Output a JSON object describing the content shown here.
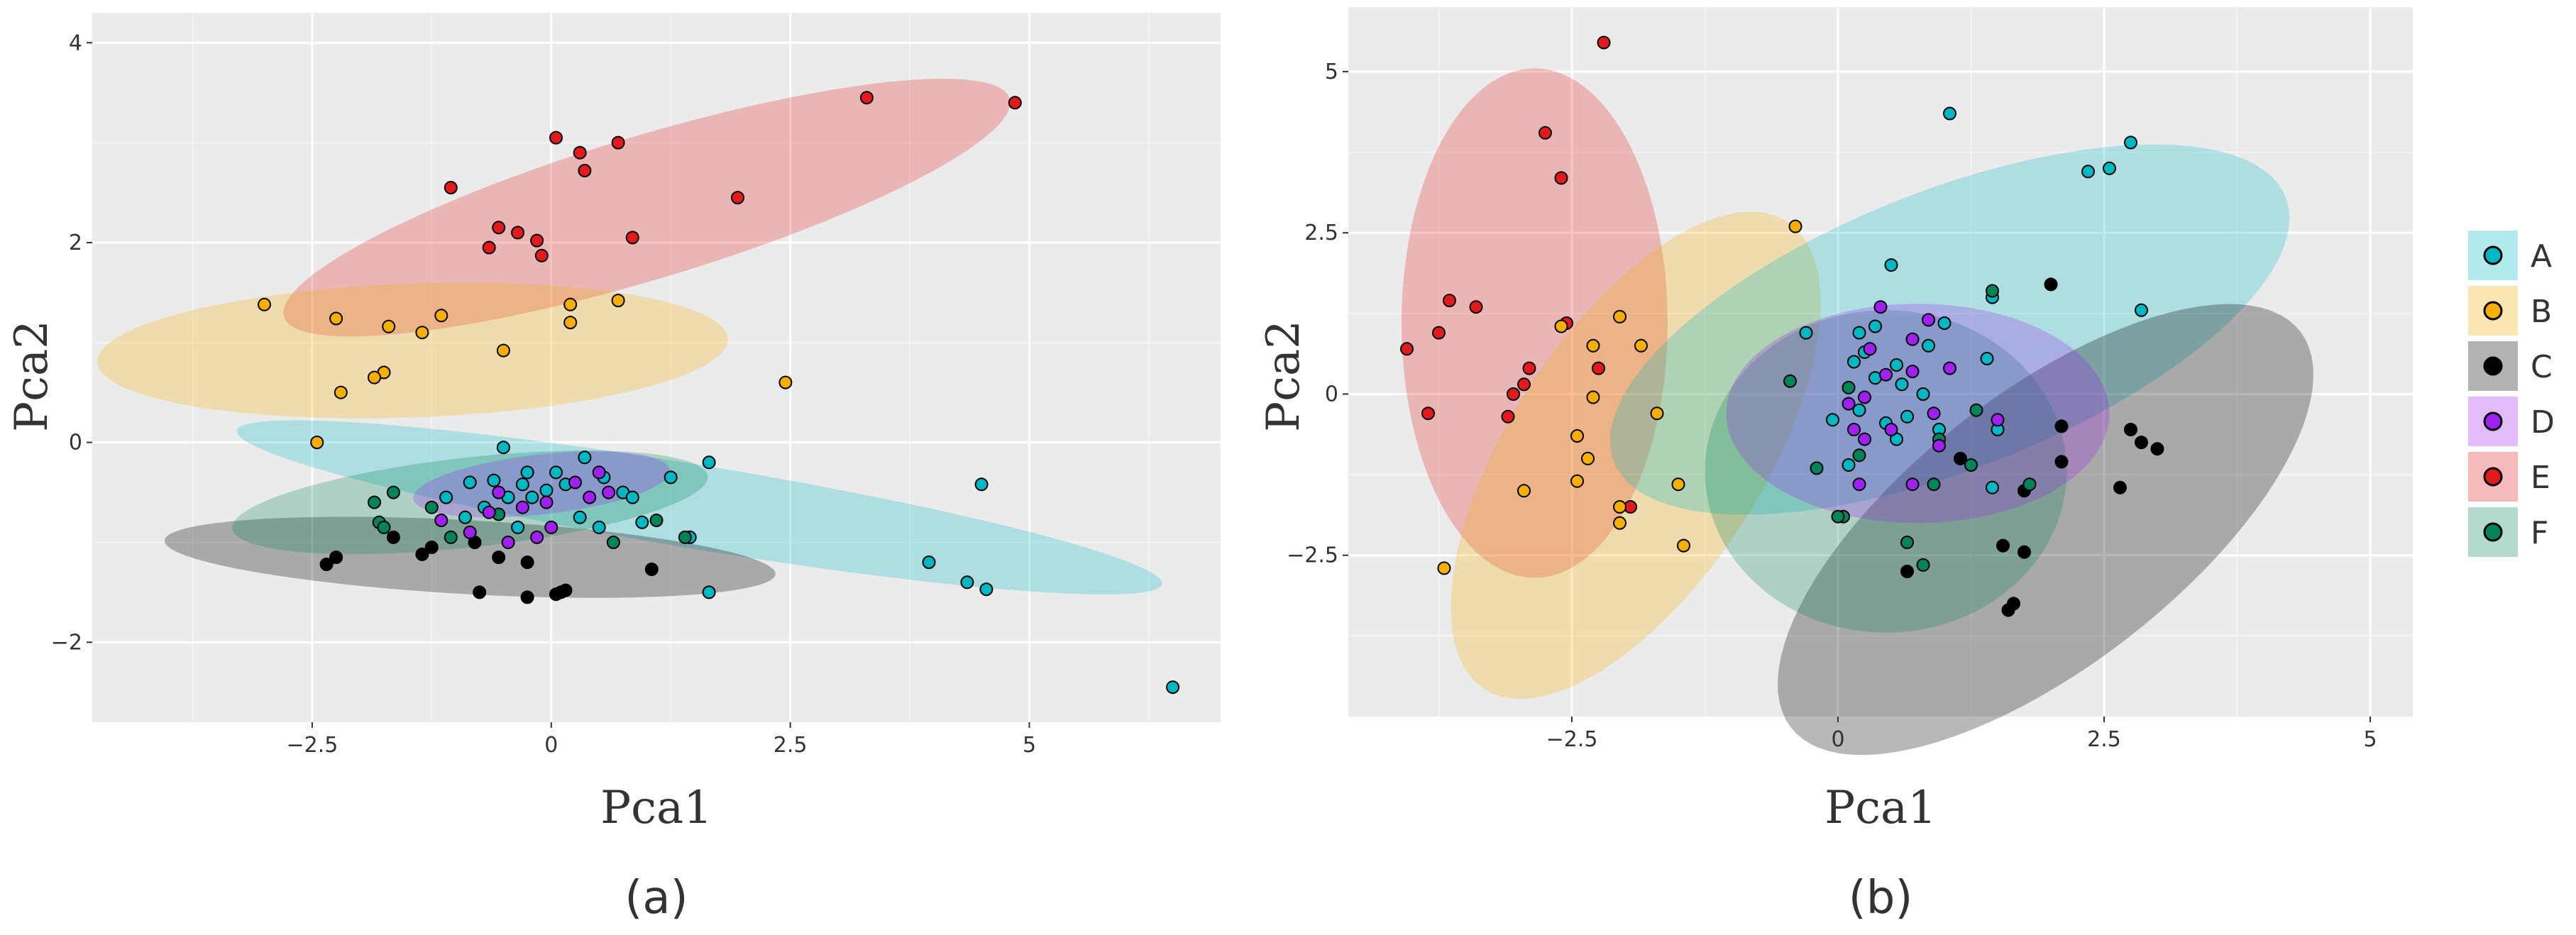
{
  "group_colors": {
    "A": "#00B8C4",
    "B": "#F6AE00",
    "C": "#000000",
    "D": "#A020F0",
    "E": "#E31A1C",
    "F": "#00855A"
  },
  "chart_data": [
    {
      "type": "scatter",
      "panel_label": "(a)",
      "xlabel": "Pca1",
      "ylabel": "Pca2",
      "xlim": [
        -4.8,
        7.0
      ],
      "ylim": [
        -2.8,
        4.3
      ],
      "xticks": [
        -2.5,
        0,
        2.5,
        5
      ],
      "xtick_labels": [
        "−2.5",
        "0",
        "2.5",
        "5"
      ],
      "yticks": [
        -2,
        0,
        2,
        4
      ],
      "ytick_labels": [
        "−2",
        "0",
        "2",
        "4"
      ],
      "ellipses": [
        {
          "group": "E",
          "center": [
            1.0,
            2.35
          ],
          "semi_major": 3.95,
          "semi_minor": 0.72,
          "angle_deg": 16
        },
        {
          "group": "B",
          "center": [
            -1.45,
            0.92
          ],
          "semi_major": 3.3,
          "semi_minor": 0.67,
          "angle_deg": 2
        },
        {
          "group": "A",
          "center": [
            1.55,
            -0.65
          ],
          "semi_major": 4.9,
          "semi_minor": 0.42,
          "angle_deg": -9
        },
        {
          "group": "C",
          "center": [
            -0.85,
            -1.15
          ],
          "semi_major": 3.2,
          "semi_minor": 0.37,
          "angle_deg": -3
        },
        {
          "group": "F",
          "center": [
            -0.85,
            -0.6
          ],
          "semi_major": 2.5,
          "semi_minor": 0.45,
          "angle_deg": 6
        },
        {
          "group": "D",
          "center": [
            -0.1,
            -0.42
          ],
          "semi_major": 1.35,
          "semi_minor": 0.3,
          "angle_deg": 6
        }
      ],
      "points": {
        "E": [
          [
            3.3,
            3.45
          ],
          [
            4.85,
            3.4
          ],
          [
            0.05,
            3.05
          ],
          [
            0.7,
            3.0
          ],
          [
            0.3,
            2.9
          ],
          [
            0.35,
            2.72
          ],
          [
            -1.05,
            2.55
          ],
          [
            1.95,
            2.45
          ],
          [
            -0.55,
            2.15
          ],
          [
            -0.35,
            2.1
          ],
          [
            -0.15,
            2.02
          ],
          [
            0.85,
            2.05
          ],
          [
            -0.65,
            1.95
          ],
          [
            -0.1,
            1.87
          ]
        ],
        "B": [
          [
            -3.0,
            1.38
          ],
          [
            0.7,
            1.42
          ],
          [
            0.2,
            1.38
          ],
          [
            -1.15,
            1.27
          ],
          [
            -2.25,
            1.24
          ],
          [
            -1.7,
            1.16
          ],
          [
            -1.35,
            1.1
          ],
          [
            0.2,
            1.2
          ],
          [
            -0.5,
            0.92
          ],
          [
            -1.75,
            0.7
          ],
          [
            -2.2,
            0.5
          ],
          [
            2.45,
            0.6
          ],
          [
            -2.45,
            0.0
          ],
          [
            -1.85,
            0.65
          ]
        ],
        "A": [
          [
            -0.5,
            -0.05
          ],
          [
            0.35,
            -0.15
          ],
          [
            0.05,
            -0.3
          ],
          [
            0.15,
            -0.42
          ],
          [
            -0.05,
            -0.48
          ],
          [
            -0.3,
            -0.42
          ],
          [
            -0.45,
            -0.55
          ],
          [
            -0.6,
            -0.38
          ],
          [
            0.55,
            -0.35
          ],
          [
            0.75,
            -0.5
          ],
          [
            1.25,
            -0.35
          ],
          [
            1.65,
            -0.2
          ],
          [
            0.85,
            -0.55
          ],
          [
            0.95,
            -0.8
          ],
          [
            1.45,
            -0.95
          ],
          [
            1.65,
            -1.5
          ],
          [
            3.95,
            -1.2
          ],
          [
            4.35,
            -1.4
          ],
          [
            4.55,
            -1.47
          ],
          [
            4.5,
            -0.42
          ],
          [
            6.5,
            -2.45
          ],
          [
            -0.2,
            -0.55
          ],
          [
            -0.7,
            -0.65
          ],
          [
            0.3,
            -0.75
          ],
          [
            0.5,
            -0.85
          ],
          [
            -0.35,
            -0.85
          ],
          [
            -0.9,
            -0.75
          ],
          [
            -1.1,
            -0.55
          ],
          [
            -0.85,
            -0.4
          ],
          [
            -0.25,
            -0.3
          ]
        ],
        "D": [
          [
            0.25,
            -0.4
          ],
          [
            0.5,
            -0.3
          ],
          [
            0.6,
            -0.5
          ],
          [
            -0.3,
            -0.65
          ],
          [
            -0.15,
            -0.95
          ],
          [
            -0.45,
            -1.0
          ],
          [
            -0.85,
            -0.9
          ],
          [
            -0.05,
            -0.6
          ],
          [
            0.4,
            -0.55
          ],
          [
            -0.65,
            -0.7
          ],
          [
            -1.15,
            -0.78
          ],
          [
            -0.55,
            -0.5
          ],
          [
            0.0,
            -0.85
          ]
        ],
        "F": [
          [
            -1.65,
            -0.5
          ],
          [
            -1.85,
            -0.6
          ],
          [
            -1.8,
            -0.8
          ],
          [
            -1.75,
            -0.85
          ],
          [
            -1.05,
            -0.95
          ],
          [
            0.65,
            -1.0
          ],
          [
            -0.55,
            -0.72
          ],
          [
            1.1,
            -0.78
          ],
          [
            1.4,
            -0.95
          ],
          [
            -1.25,
            -0.65
          ]
        ],
        "C": [
          [
            -2.35,
            -1.22
          ],
          [
            -2.25,
            -1.15
          ],
          [
            -1.65,
            -0.95
          ],
          [
            -1.25,
            -1.05
          ],
          [
            -0.8,
            -1.0
          ],
          [
            -0.55,
            -1.15
          ],
          [
            -0.25,
            -1.2
          ],
          [
            -0.75,
            -1.5
          ],
          [
            -0.25,
            -1.55
          ],
          [
            0.1,
            -1.5
          ],
          [
            0.15,
            -1.48
          ],
          [
            1.05,
            -1.27
          ],
          [
            -1.35,
            -1.12
          ],
          [
            0.05,
            -1.52
          ]
        ]
      }
    },
    {
      "type": "scatter",
      "panel_label": "(b)",
      "xlabel": "Pca1",
      "ylabel": "Pca2",
      "xlim": [
        -4.6,
        5.4
      ],
      "ylim": [
        -5.0,
        6.0
      ],
      "xticks": [
        -2.5,
        0,
        2.5,
        5
      ],
      "xtick_labels": [
        "−2.5",
        "0",
        "2.5",
        "5"
      ],
      "yticks": [
        -2.5,
        0,
        2.5,
        5
      ],
      "ytick_labels": [
        "−2.5",
        "0",
        "2.5",
        "5"
      ],
      "ellipses": [
        {
          "group": "E",
          "center": [
            -2.85,
            1.1
          ],
          "semi_major": 3.95,
          "semi_minor": 1.25,
          "angle_deg": -90
        },
        {
          "group": "B",
          "center": [
            -1.9,
            -0.95
          ],
          "semi_major": 3.95,
          "semi_minor": 1.3,
          "angle_deg": 72
        },
        {
          "group": "A",
          "center": [
            1.05,
            1.0
          ],
          "semi_major": 3.85,
          "semi_minor": 1.9,
          "angle_deg": 40
        },
        {
          "group": "C",
          "center": [
            1.95,
            -2.1
          ],
          "semi_major": 4.0,
          "semi_minor": 1.6,
          "angle_deg": 58
        },
        {
          "group": "F",
          "center": [
            0.45,
            -1.2
          ],
          "semi_major": 2.5,
          "semi_minor": 1.7,
          "angle_deg": 90
        },
        {
          "group": "D",
          "center": [
            0.75,
            -0.3
          ],
          "semi_major": 1.8,
          "semi_minor": 1.7,
          "angle_deg": 0
        }
      ],
      "points": {
        "E": [
          [
            -2.2,
            5.45
          ],
          [
            -2.75,
            4.05
          ],
          [
            -2.6,
            3.35
          ],
          [
            -3.65,
            1.45
          ],
          [
            -3.4,
            1.35
          ],
          [
            -2.55,
            1.1
          ],
          [
            -3.75,
            0.95
          ],
          [
            -4.05,
            0.7
          ],
          [
            -2.9,
            0.4
          ],
          [
            -2.25,
            0.4
          ],
          [
            -2.95,
            0.15
          ],
          [
            -3.05,
            0.0
          ],
          [
            -3.85,
            -0.3
          ],
          [
            -3.1,
            -0.35
          ],
          [
            -1.95,
            -1.75
          ]
        ],
        "B": [
          [
            -0.4,
            2.6
          ],
          [
            -2.05,
            1.2
          ],
          [
            -2.6,
            1.05
          ],
          [
            -1.85,
            0.75
          ],
          [
            -2.3,
            0.75
          ],
          [
            -2.3,
            -0.05
          ],
          [
            -1.7,
            -0.3
          ],
          [
            -2.45,
            -0.65
          ],
          [
            -2.35,
            -1.0
          ],
          [
            -2.45,
            -1.35
          ],
          [
            -2.95,
            -1.5
          ],
          [
            -1.5,
            -1.4
          ],
          [
            -2.05,
            -2.0
          ],
          [
            -1.45,
            -2.35
          ],
          [
            -3.7,
            -2.7
          ],
          [
            -2.05,
            -1.75
          ]
        ],
        "A": [
          [
            1.05,
            4.35
          ],
          [
            2.75,
            3.9
          ],
          [
            2.55,
            3.5
          ],
          [
            2.35,
            3.45
          ],
          [
            0.5,
            2.0
          ],
          [
            1.45,
            1.5
          ],
          [
            0.35,
            1.05
          ],
          [
            0.25,
            0.65
          ],
          [
            0.55,
            0.45
          ],
          [
            0.15,
            0.5
          ],
          [
            0.35,
            0.25
          ],
          [
            0.6,
            0.15
          ],
          [
            0.8,
            0.0
          ],
          [
            0.2,
            -0.25
          ],
          [
            0.45,
            -0.45
          ],
          [
            0.65,
            -0.35
          ],
          [
            0.95,
            -0.55
          ],
          [
            1.4,
            0.55
          ],
          [
            1.0,
            1.1
          ],
          [
            2.85,
            1.3
          ],
          [
            0.2,
            0.95
          ],
          [
            -0.05,
            -0.4
          ],
          [
            0.85,
            0.75
          ],
          [
            0.55,
            -0.7
          ],
          [
            0.1,
            -1.1
          ],
          [
            1.45,
            -1.45
          ],
          [
            1.5,
            -0.55
          ],
          [
            -0.3,
            0.95
          ]
        ],
        "D": [
          [
            0.4,
            1.35
          ],
          [
            0.85,
            1.15
          ],
          [
            0.7,
            0.85
          ],
          [
            0.3,
            0.7
          ],
          [
            1.05,
            0.4
          ],
          [
            0.45,
            0.3
          ],
          [
            0.25,
            -0.05
          ],
          [
            0.7,
            0.35
          ],
          [
            0.9,
            -0.3
          ],
          [
            0.5,
            -0.55
          ],
          [
            0.15,
            -0.55
          ],
          [
            0.25,
            -0.7
          ],
          [
            1.5,
            -0.4
          ],
          [
            0.95,
            -0.8
          ],
          [
            0.7,
            -1.4
          ],
          [
            0.2,
            -1.4
          ],
          [
            0.1,
            -0.15
          ]
        ],
        "F": [
          [
            1.45,
            1.6
          ],
          [
            -0.45,
            0.2
          ],
          [
            0.1,
            0.1
          ],
          [
            -0.2,
            -1.15
          ],
          [
            0.05,
            -1.9
          ],
          [
            0.95,
            -0.7
          ],
          [
            1.3,
            -0.25
          ],
          [
            0.2,
            -0.95
          ],
          [
            1.25,
            -1.1
          ],
          [
            0.9,
            -1.4
          ],
          [
            0.65,
            -2.3
          ],
          [
            0.8,
            -2.65
          ],
          [
            1.8,
            -1.4
          ],
          [
            0.0,
            -1.9
          ]
        ],
        "C": [
          [
            2.0,
            1.7
          ],
          [
            2.1,
            -0.5
          ],
          [
            2.75,
            -0.55
          ],
          [
            2.85,
            -0.75
          ],
          [
            3.0,
            -0.85
          ],
          [
            2.1,
            -1.05
          ],
          [
            2.65,
            -1.45
          ],
          [
            1.15,
            -1.0
          ],
          [
            1.75,
            -1.5
          ],
          [
            1.75,
            -2.45
          ],
          [
            1.55,
            -2.35
          ],
          [
            0.65,
            -2.75
          ],
          [
            1.65,
            -3.25
          ],
          [
            1.6,
            -3.35
          ]
        ]
      }
    }
  ],
  "legend": {
    "items": [
      {
        "key": "A",
        "label": "A"
      },
      {
        "key": "B",
        "label": "B"
      },
      {
        "key": "C",
        "label": "C"
      },
      {
        "key": "D",
        "label": "D"
      },
      {
        "key": "E",
        "label": "E"
      },
      {
        "key": "F",
        "label": "F"
      }
    ]
  }
}
